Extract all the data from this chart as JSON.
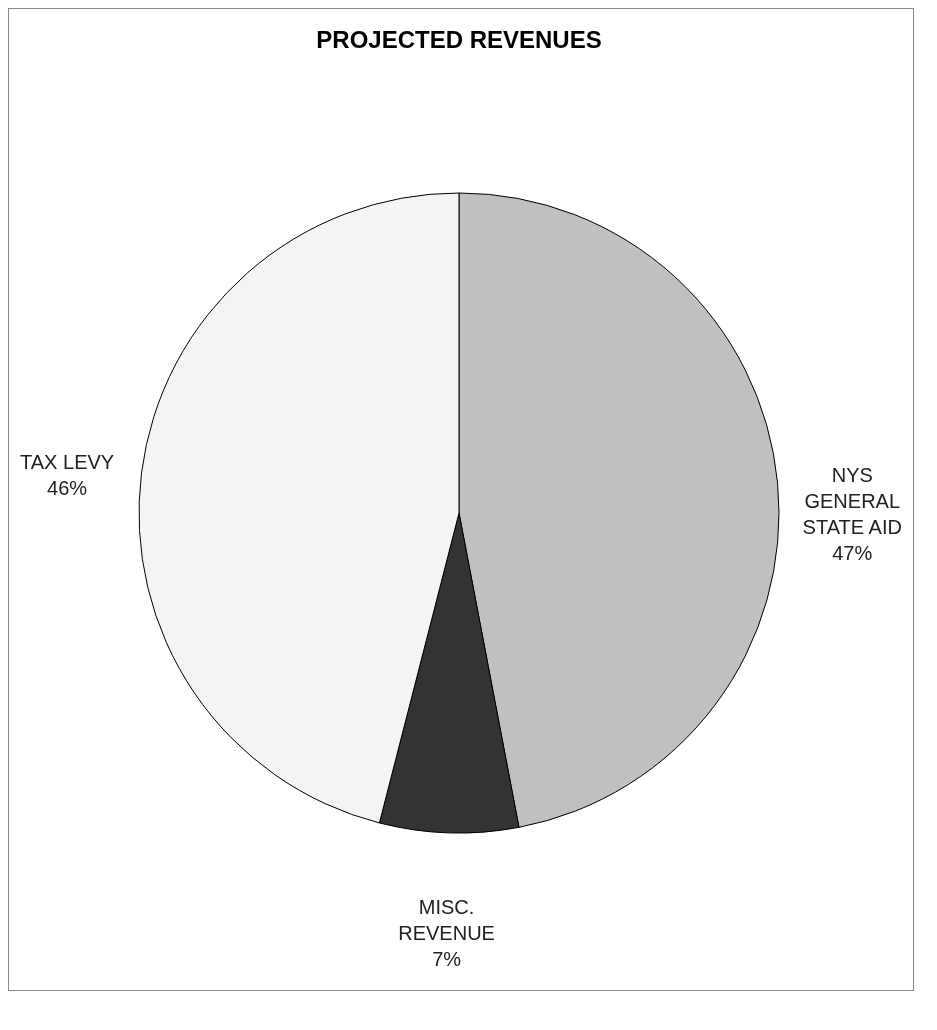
{
  "chart_data": {
    "type": "pie",
    "title": "PROJECTED REVENUES",
    "categories": [
      "NYS GENERAL STATE AID",
      "MISC. REVENUE",
      "TAX LEVY"
    ],
    "values": [
      47,
      7,
      46
    ],
    "colors": [
      "#c0c0c0",
      "#333333",
      "#f4f4f4"
    ],
    "value_labels": [
      "47%",
      "7%",
      "46%"
    ],
    "legend": false
  }
}
